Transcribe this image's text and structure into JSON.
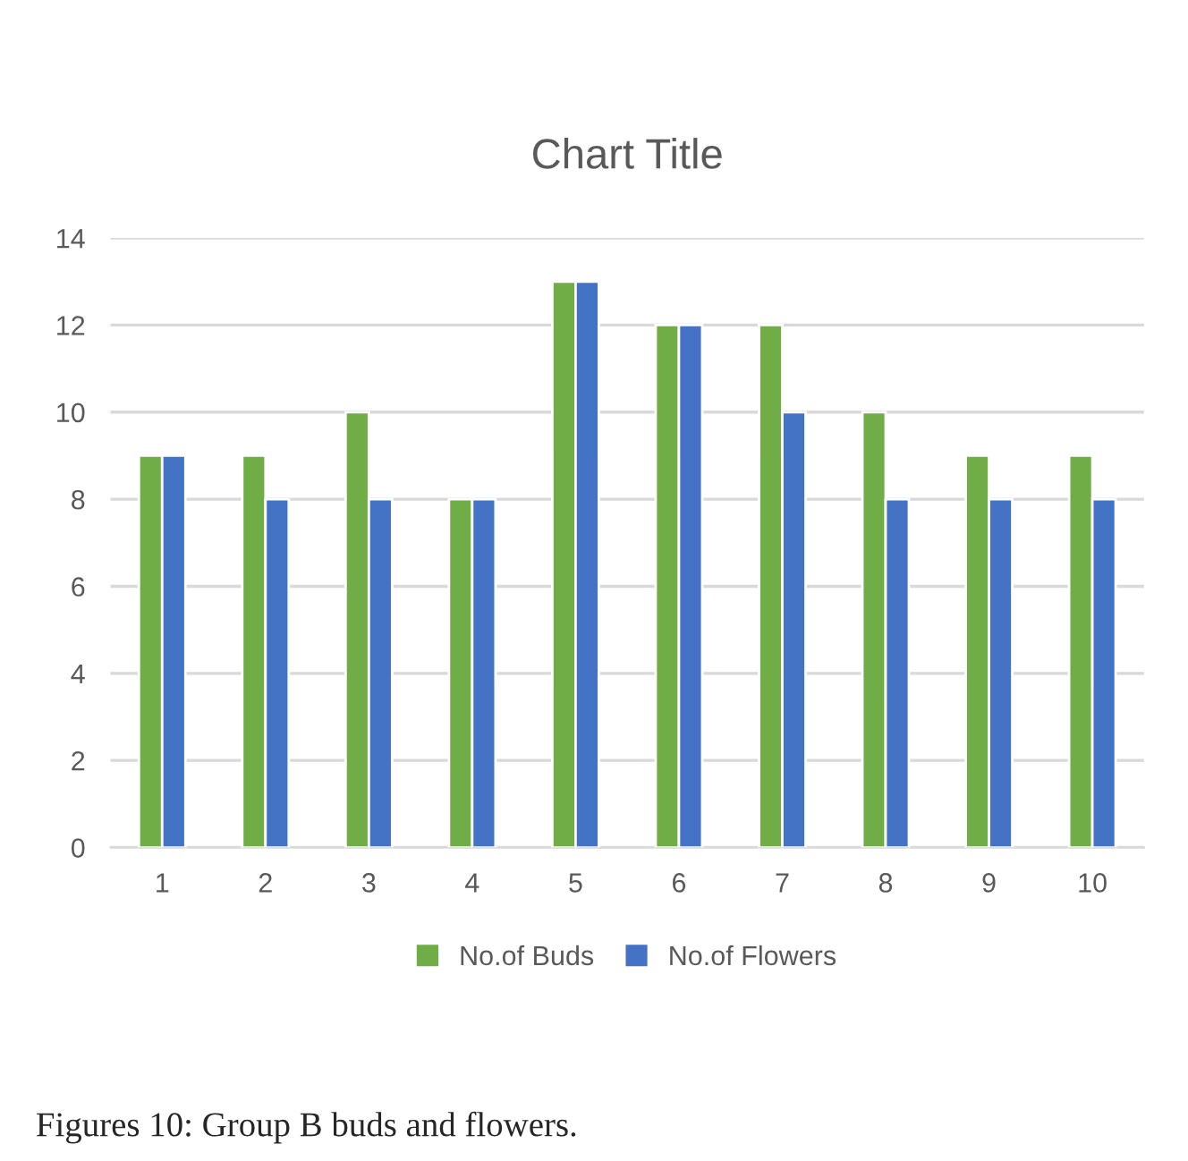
{
  "chart_data": {
    "type": "bar",
    "title": "Chart Title",
    "categories": [
      "1",
      "2",
      "3",
      "4",
      "5",
      "6",
      "7",
      "8",
      "9",
      "10"
    ],
    "series": [
      {
        "name": "No.of Buds",
        "color": "#70ad47",
        "values": [
          9,
          9,
          10,
          8,
          13,
          12,
          12,
          10,
          9,
          9
        ]
      },
      {
        "name": "No.of Flowers",
        "color": "#4472c4",
        "values": [
          9,
          8,
          8,
          8,
          13,
          12,
          10,
          8,
          8,
          8
        ]
      }
    ],
    "ylim": [
      0,
      14
    ],
    "yticks": [
      0,
      2,
      4,
      6,
      8,
      10,
      12,
      14
    ],
    "grid": "y",
    "legend": "bottom",
    "annotations": [
      "Figures 10: Group B buds and flowers."
    ]
  }
}
